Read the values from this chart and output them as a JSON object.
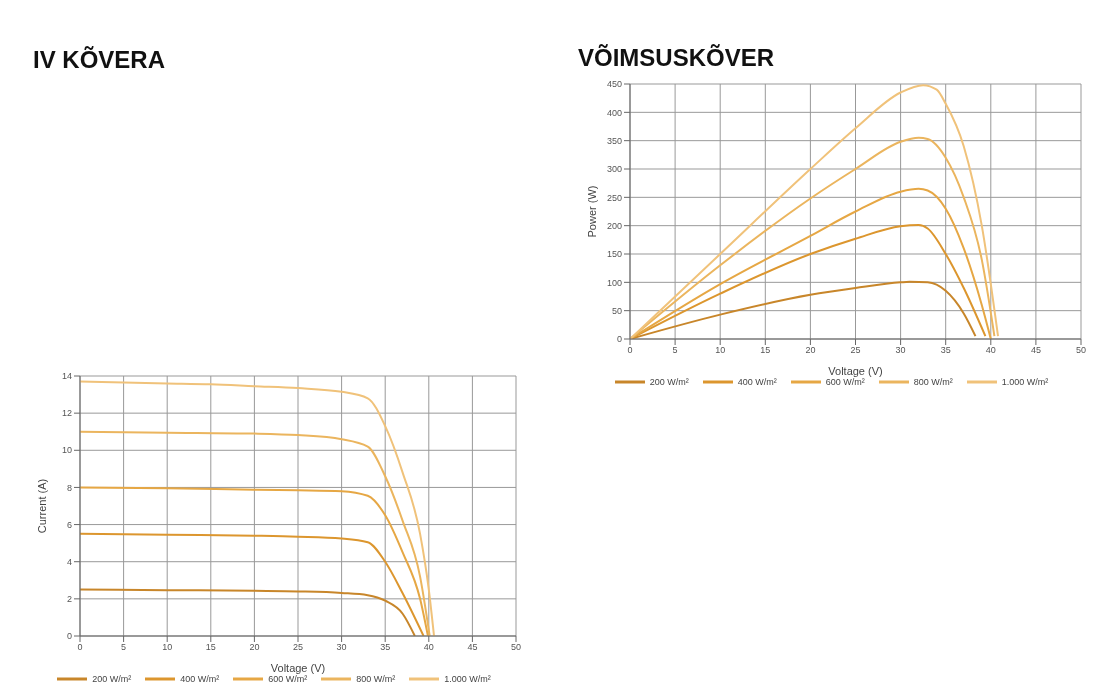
{
  "chart_data": [
    {
      "type": "line",
      "title": "IV KÕVERA",
      "xlabel": "Voltage (V)",
      "ylabel": "Current (A)",
      "xlim": [
        0,
        50
      ],
      "xticks": [
        0,
        5,
        10,
        15,
        20,
        25,
        30,
        35,
        40,
        45,
        50
      ],
      "ylim": [
        0,
        14
      ],
      "yticks": [
        0,
        2,
        4,
        6,
        8,
        10,
        12,
        14
      ],
      "grid": true,
      "legend": "bottom",
      "marker": "none",
      "line_style": "solid",
      "series": [
        {
          "name": "200 W/m²",
          "color": "#c8862a",
          "x": [
            0,
            10,
            20,
            25,
            30,
            33,
            35,
            37,
            38.4
          ],
          "values": [
            2.5,
            2.47,
            2.43,
            2.4,
            2.32,
            2.2,
            1.9,
            1.2,
            0
          ]
        },
        {
          "name": "400 W/m²",
          "color": "#dc962e",
          "x": [
            0,
            10,
            20,
            25,
            30,
            33,
            35,
            37,
            39.4
          ],
          "values": [
            5.5,
            5.45,
            5.4,
            5.35,
            5.25,
            5.05,
            4.0,
            2.3,
            0
          ]
        },
        {
          "name": "600 W/m²",
          "color": "#e6a744",
          "x": [
            0,
            10,
            20,
            25,
            30,
            33,
            35,
            37,
            39,
            39.9
          ],
          "values": [
            8,
            7.95,
            7.88,
            7.85,
            7.8,
            7.55,
            6.5,
            4.5,
            2,
            0
          ]
        },
        {
          "name": "800 W/m²",
          "color": "#ebb55e",
          "x": [
            0,
            10,
            20,
            25,
            30,
            33,
            35,
            37,
            39,
            40.1
          ],
          "values": [
            11,
            10.95,
            10.9,
            10.82,
            10.6,
            10.2,
            8.6,
            6.2,
            3.2,
            0
          ]
        },
        {
          "name": "1.000 W/m²",
          "color": "#f0c27a",
          "x": [
            0,
            10,
            15,
            20,
            25,
            30,
            33,
            35,
            37,
            39,
            40,
            40.6
          ],
          "values": [
            13.7,
            13.6,
            13.55,
            13.45,
            13.35,
            13.15,
            12.8,
            11.3,
            8.8,
            5.5,
            2.5,
            0
          ]
        }
      ]
    },
    {
      "type": "line",
      "title": "VÕIMSUSKÕVER",
      "xlabel": "Voltage (V)",
      "ylabel": "Power (W)",
      "xlim": [
        0,
        50
      ],
      "xticks": [
        0,
        5,
        10,
        15,
        20,
        25,
        30,
        35,
        40,
        45,
        50
      ],
      "ylim": [
        0,
        450
      ],
      "yticks": [
        0,
        50,
        100,
        150,
        200,
        250,
        300,
        350,
        400,
        450
      ],
      "grid": true,
      "legend": "bottom",
      "marker": "none",
      "line_style": "solid",
      "series": [
        {
          "name": "200 W/m²",
          "color": "#c8862a",
          "x": [
            0,
            10,
            20,
            25,
            30,
            31,
            33,
            35,
            37,
            38.3
          ],
          "values": [
            0,
            43,
            78,
            90,
            100,
            101,
            100,
            85,
            45,
            5
          ]
        },
        {
          "name": "400 W/m²",
          "color": "#dc962e",
          "x": [
            0,
            10,
            20,
            25,
            30,
            32,
            33,
            35,
            37,
            39.4
          ],
          "values": [
            0,
            80,
            150,
            177,
            199,
            201,
            195,
            150,
            90,
            5
          ]
        },
        {
          "name": "600 W/m²",
          "color": "#e6a744",
          "x": [
            0,
            10,
            20,
            25,
            30,
            32,
            33,
            35,
            37,
            39,
            40
          ],
          "values": [
            0,
            97,
            182,
            225,
            260,
            265,
            262,
            230,
            160,
            60,
            0
          ]
        },
        {
          "name": "800 W/m²",
          "color": "#ebb55e",
          "x": [
            0,
            10,
            20,
            25,
            30,
            32,
            33,
            35,
            37,
            39,
            40.4
          ],
          "values": [
            0,
            130,
            248,
            300,
            348,
            355,
            353,
            320,
            250,
            140,
            5
          ]
        },
        {
          "name": "1.000 W/m²",
          "color": "#f0c27a",
          "x": [
            0,
            10,
            20,
            25,
            30,
            32.5,
            34,
            35,
            37,
            39,
            40.8
          ],
          "values": [
            0,
            150,
            300,
            372,
            435,
            448,
            440,
            415,
            340,
            200,
            5
          ]
        }
      ]
    }
  ]
}
